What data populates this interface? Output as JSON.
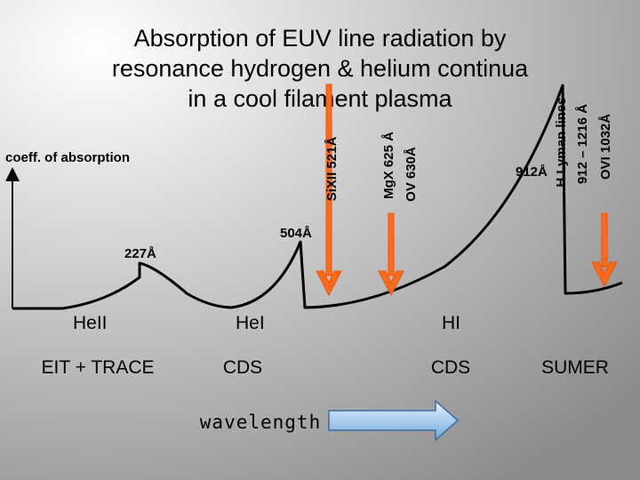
{
  "title": [
    "Absorption of EUV line radiation by",
    "resonance hydrogen & helium continua",
    "in a cool filament plasma"
  ],
  "y_axis_label": "coeff. of absorption",
  "edges": [
    "227Å",
    "504Å",
    "912Å"
  ],
  "lines": [
    "SiXII 521Å",
    "MgX 625 Å",
    "OV 630Å",
    "H Lyman lines",
    "912 – 1216 Å",
    "OVI 1032Å"
  ],
  "ions": [
    "HeII",
    "HeI",
    "HI"
  ],
  "instruments": [
    "EIT + TRACE",
    "CDS",
    "CDS",
    "SUMER"
  ],
  "x_axis_label": "wavelength"
}
